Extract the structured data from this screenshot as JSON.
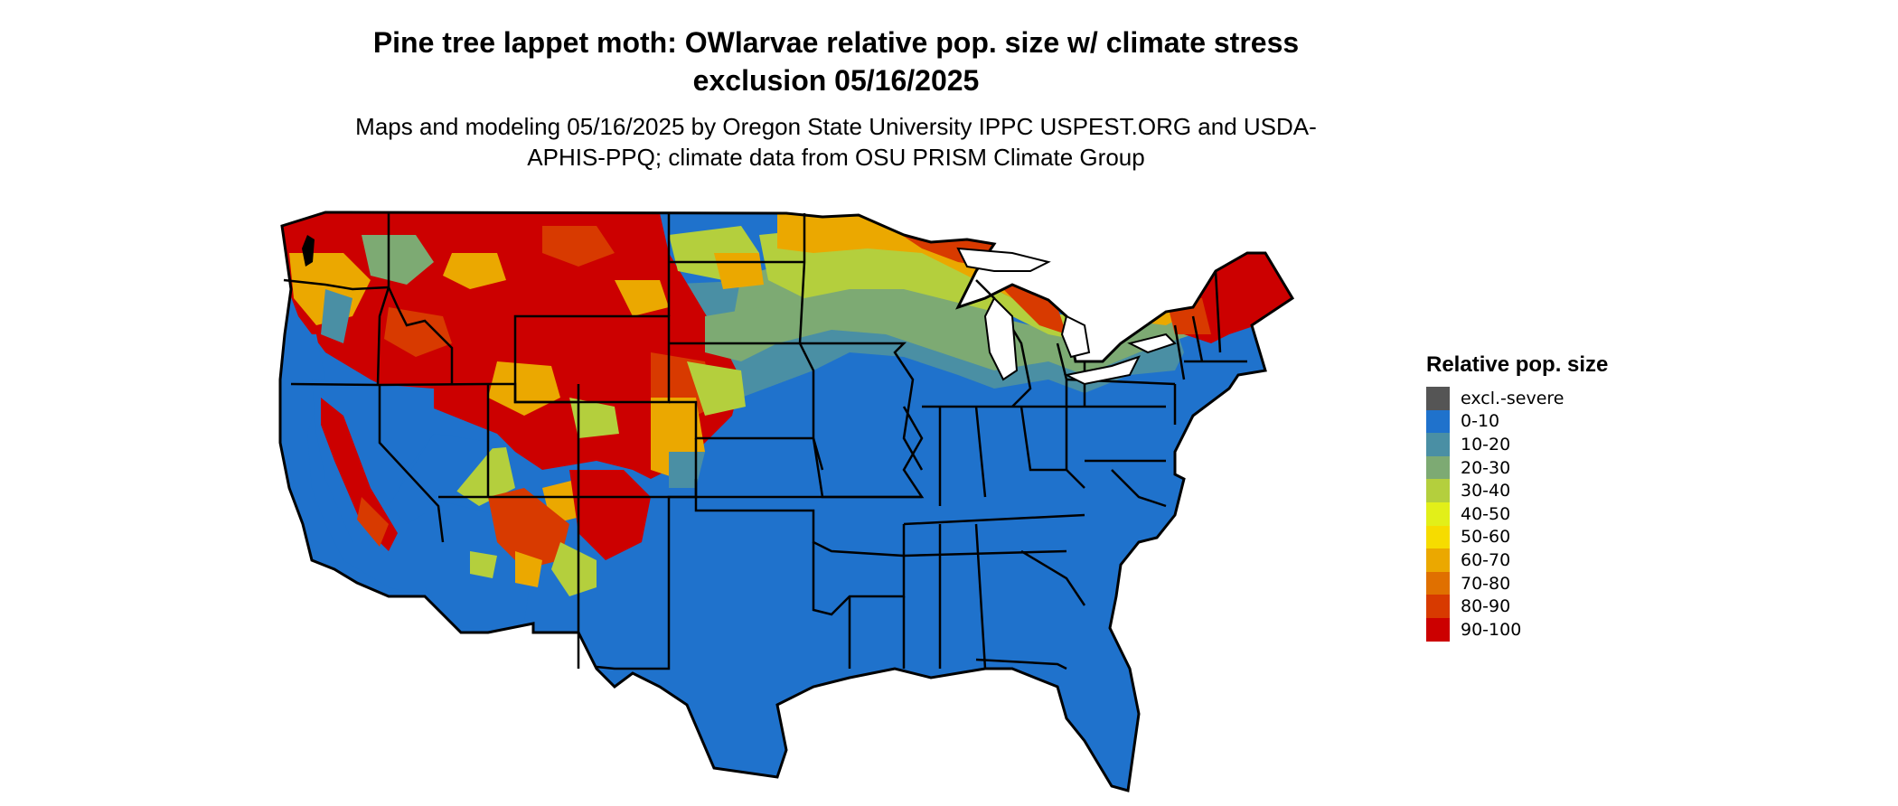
{
  "title": "Pine tree lappet moth: OWlarvae relative pop. size w/ climate stress exclusion 05/16/2025",
  "subtitle": "Maps and modeling 05/16/2025 by Oregon State University IPPC USPEST.ORG and USDA-APHIS-PPQ; climate data from OSU PRISM Climate Group",
  "legend": {
    "title": "Relative pop. size",
    "items": [
      {
        "label": "excl.-severe",
        "color": "#555555"
      },
      {
        "label": "0-10",
        "color": "#1f72cc"
      },
      {
        "label": "10-20",
        "color": "#4a8fa4"
      },
      {
        "label": "20-30",
        "color": "#7daa73"
      },
      {
        "label": "30-40",
        "color": "#b4cf3d"
      },
      {
        "label": "40-50",
        "color": "#e2ef19"
      },
      {
        "label": "50-60",
        "color": "#f6dc00"
      },
      {
        "label": "60-70",
        "color": "#eba800"
      },
      {
        "label": "70-80",
        "color": "#e07000"
      },
      {
        "label": "80-90",
        "color": "#d83a00"
      },
      {
        "label": "90-100",
        "color": "#cc0000"
      }
    ]
  }
}
